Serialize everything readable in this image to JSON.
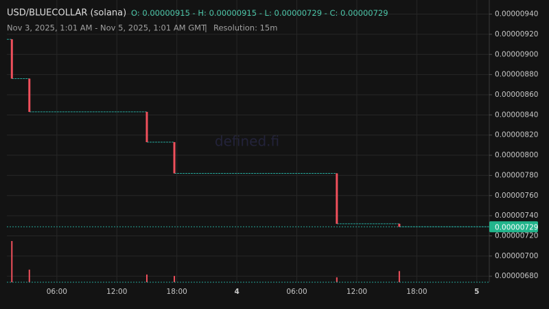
{
  "chart_data": {
    "type": "candlestick",
    "title": "USD/BLUECOLLAR (solana)",
    "ohlc": [
      {
        "label": "O:",
        "value": 9.15e-06
      },
      {
        "label": "H:",
        "value": 9.15e-06
      },
      {
        "label": "L:",
        "value": 7.29e-06
      },
      {
        "label": "C:",
        "value": 7.29e-06
      }
    ],
    "range": "Nov 3, 2025, 1:01 AM - Nov 5, 2025, 1:01 AM GMT",
    "resolution": "Resolution: 15m",
    "watermark": "defined.fi",
    "last_price": 7.29e-06,
    "x": [
      1.5,
      3.25,
      15.0,
      17.75,
      34.0,
      40.25
    ],
    "open": [
      9.15e-06,
      8.76e-06,
      8.43e-06,
      8.13e-06,
      7.82e-06,
      7.32e-06
    ],
    "high": [
      9.15e-06,
      8.76e-06,
      8.43e-06,
      8.13e-06,
      7.82e-06,
      7.32e-06
    ],
    "low": [
      8.76e-06,
      8.43e-06,
      8.13e-06,
      7.82e-06,
      7.32e-06,
      7.29e-06
    ],
    "close": [
      8.76e-06,
      8.43e-06,
      8.13e-06,
      7.82e-06,
      7.32e-06,
      7.29e-06
    ],
    "volume": [
      59,
      18,
      11,
      9,
      7,
      16
    ],
    "up_color": "#26a69a",
    "down_color": "#f0505c",
    "xlim": [
      1,
      49.25
    ],
    "xticks": [
      {
        "value": 6,
        "label": "06:00"
      },
      {
        "value": 12,
        "label": "12:00"
      },
      {
        "value": 18,
        "label": "18:00"
      },
      {
        "value": 24,
        "label": "4"
      },
      {
        "value": 30,
        "label": "06:00"
      },
      {
        "value": 36,
        "label": "12:00"
      },
      {
        "value": 42,
        "label": "18:00"
      },
      {
        "value": 48,
        "label": "5"
      }
    ],
    "ylim": [
      6.74e-06,
      9.54e-06
    ],
    "yticks": [
      {
        "value": 6.8e-06,
        "label": "0.00000680"
      },
      {
        "value": 7e-06,
        "label": "0.00000700"
      },
      {
        "value": 7.2e-06,
        "label": "0.00000720"
      },
      {
        "value": 7.4e-06,
        "label": "0.00000740"
      },
      {
        "value": 7.6e-06,
        "label": "0.00000760"
      },
      {
        "value": 7.8e-06,
        "label": "0.00000780"
      },
      {
        "value": 8e-06,
        "label": "0.00000800"
      },
      {
        "value": 8.2e-06,
        "label": "0.00000820"
      },
      {
        "value": 8.4e-06,
        "label": "0.00000840"
      },
      {
        "value": 8.6e-06,
        "label": "0.00000860"
      },
      {
        "value": 8.8e-06,
        "label": "0.00000880"
      },
      {
        "value": 9e-06,
        "label": "0.00000900"
      },
      {
        "value": 9.2e-06,
        "label": "0.00000920"
      },
      {
        "value": 9.4e-06,
        "label": "0.00000940"
      }
    ],
    "grid": true
  }
}
